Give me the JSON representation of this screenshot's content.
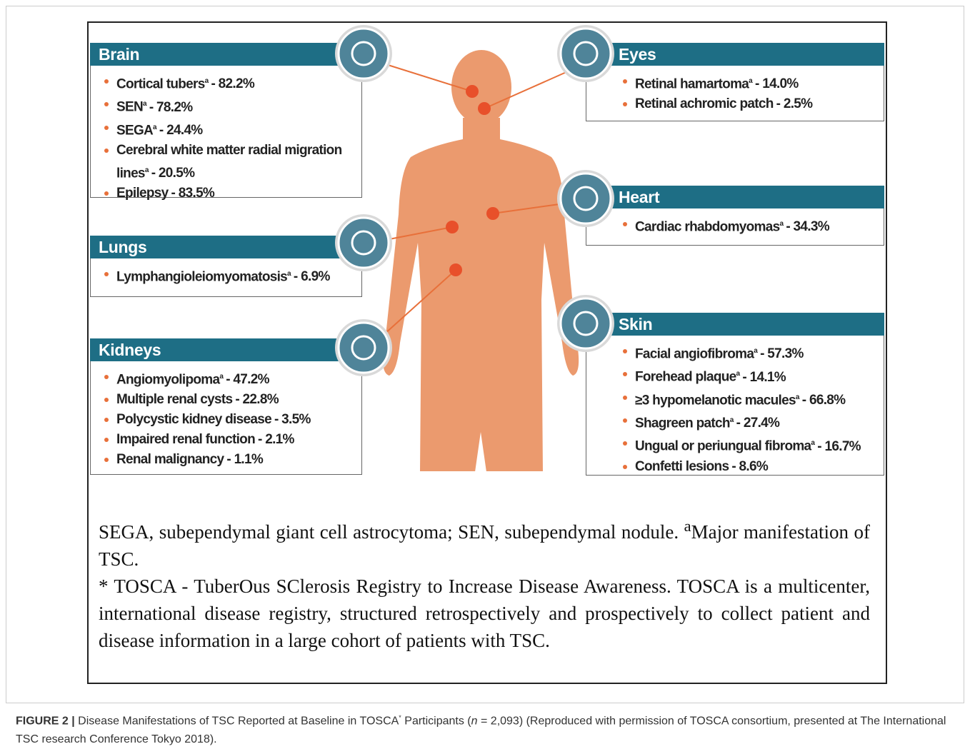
{
  "panels": [
    {
      "title": "Brain",
      "items": [
        {
          "name": "Cortical tubers",
          "sup": "a",
          "value": "- 82.2%"
        },
        {
          "name": "SEN",
          "sup": "a",
          "value": "- 78.2%"
        },
        {
          "name": "SEGA",
          "sup": "a",
          "value": "- 24.4%"
        },
        {
          "name": "Cerebral white matter radial migration lines",
          "sup": "a",
          "value": "- 20.5%"
        },
        {
          "name": "Epilepsy",
          "value": "- 83.5%"
        }
      ]
    },
    {
      "title": "Eyes",
      "items": [
        {
          "name": "Retinal hamartoma",
          "sup": "a",
          "value": "- 14.0%"
        },
        {
          "name": "Retinal achromic patch",
          "value": "- 2.5%"
        }
      ]
    },
    {
      "title": "Heart",
      "items": [
        {
          "name": "Cardiac rhabdomyomas",
          "sup": "a",
          "value": "- 34.3%"
        }
      ]
    },
    {
      "title": "Lungs",
      "items": [
        {
          "name": "Lymphangioleiomyomatosis",
          "sup": "a",
          "value": "- 6.9%"
        }
      ]
    },
    {
      "title": "Kidneys",
      "items": [
        {
          "name": "Angiomyolipoma",
          "sup": "a",
          "value": "- 47.2%"
        },
        {
          "name": "Multiple renal cysts",
          "value": "- 22.8%"
        },
        {
          "name": "Polycystic kidney disease",
          "value": "- 3.5%"
        },
        {
          "name": "Impaired renal function",
          "value": "- 2.1%"
        },
        {
          "name": "Renal malignancy",
          "value": "- 1.1%"
        }
      ]
    },
    {
      "title": "Skin",
      "items": [
        {
          "name": "Facial angiofibroma",
          "sup": "a",
          "value": "- 57.3%"
        },
        {
          "name": "Forehead plaque",
          "sup": "a",
          "value": "- 14.1%"
        },
        {
          "name": "≥3 hypomelanotic macules",
          "sup": "a",
          "value": "- 66.8%"
        },
        {
          "name": "Shagreen patch",
          "sup": "a",
          "value": "- 27.4%"
        },
        {
          "name": "Ungual or periungual fibroma",
          "sup": "a",
          "value": "- 16.7%"
        },
        {
          "name": "Confetti lesions",
          "value": "- 8.6%"
        }
      ]
    }
  ],
  "footnote": {
    "abbrev": "SEGA, subependymal giant cell astrocytoma; SEN, subependymal nodule.",
    "sup": "a",
    "major": "Major manifestation of TSC.",
    "tosca": "* TOSCA - TuberOus SClerosis Registry to Increase Disease Awareness. TOSCA is a multicenter, international disease registry, structured retrospectively and prospectively to collect patient and disease information in a large cohort of patients with TSC."
  },
  "caption": {
    "label": "FIGURE 2 |",
    "text": "Disease Manifestations of TSC Reported at Baseline in TOSCA",
    "sup": "*",
    "text2": "Participants (",
    "n": "n",
    "text3": "= 2,093) (Reproduced with permission of TOSCA consortium, presented at The International TSC research Conference Tokyo 2018)."
  }
}
